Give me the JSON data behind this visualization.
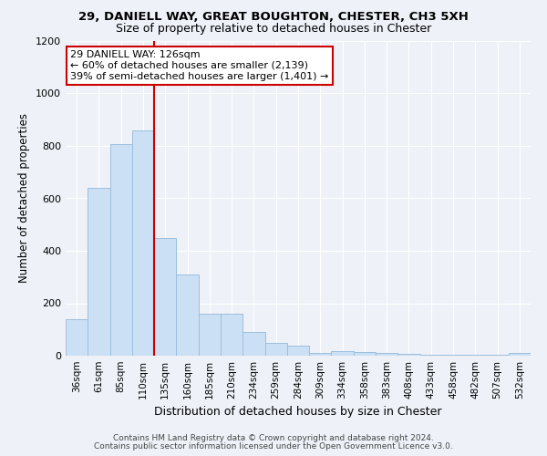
{
  "title1": "29, DANIELL WAY, GREAT BOUGHTON, CHESTER, CH3 5XH",
  "title2": "Size of property relative to detached houses in Chester",
  "xlabel": "Distribution of detached houses by size in Chester",
  "ylabel": "Number of detached properties",
  "bar_categories": [
    "36sqm",
    "61sqm",
    "85sqm",
    "110sqm",
    "135sqm",
    "160sqm",
    "185sqm",
    "210sqm",
    "234sqm",
    "259sqm",
    "284sqm",
    "309sqm",
    "334sqm",
    "358sqm",
    "383sqm",
    "408sqm",
    "433sqm",
    "458sqm",
    "482sqm",
    "507sqm",
    "532sqm"
  ],
  "bar_values": [
    138,
    640,
    808,
    858,
    448,
    310,
    160,
    160,
    90,
    50,
    40,
    12,
    18,
    15,
    10,
    8,
    5,
    5,
    5,
    3,
    12
  ],
  "bar_color": "#cce0f5",
  "bar_edge_color": "#9bbedd",
  "vline_color": "#cc0000",
  "vline_x": 3.5,
  "annotation_title": "29 DANIELL WAY: 126sqm",
  "annotation_line1": "← 60% of detached houses are smaller (2,139)",
  "annotation_line2": "39% of semi-detached houses are larger (1,401) →",
  "annotation_box_color": "#ffffff",
  "annotation_box_edge": "#cc0000",
  "ylim": [
    0,
    1200
  ],
  "yticks": [
    0,
    200,
    400,
    600,
    800,
    1000,
    1200
  ],
  "footer1": "Contains HM Land Registry data © Crown copyright and database right 2024.",
  "footer2": "Contains public sector information licensed under the Open Government Licence v3.0.",
  "bg_color": "#eef2f8",
  "plot_bg_color": "#eef2f8",
  "grid_color": "#ffffff",
  "title1_fontsize": 9.5,
  "title2_fontsize": 9.0,
  "ylabel_fontsize": 8.5,
  "xlabel_fontsize": 9.0,
  "tick_fontsize": 8.0,
  "xtick_fontsize": 7.5,
  "annot_fontsize": 8.0,
  "footer_fontsize": 6.5
}
